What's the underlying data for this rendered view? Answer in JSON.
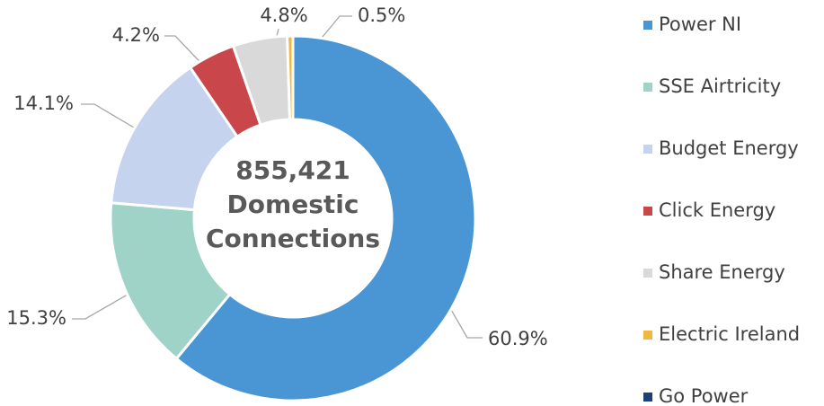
{
  "chart_data": {
    "type": "donut",
    "center_label": [
      "855,421",
      "Domestic",
      "Connections"
    ],
    "categories": [
      "Power NI",
      "SSE Airtricity",
      "Budget Energy",
      "Click Energy",
      "Share Energy",
      "Electric Ireland",
      "Go Power"
    ],
    "values": [
      60.9,
      15.3,
      14.1,
      4.2,
      4.8,
      0.5,
      0
    ],
    "value_labels": [
      "60.9%",
      "15.3%",
      "14.1%",
      "4.2%",
      "4.8%",
      "0.5%",
      null
    ],
    "colors": [
      "#4a96d4",
      "#9fd3c7",
      "#c5d3ef",
      "#c9474a",
      "#d9d9d9",
      "#f0b840",
      "#1f3f7a"
    ],
    "legend": "right"
  }
}
